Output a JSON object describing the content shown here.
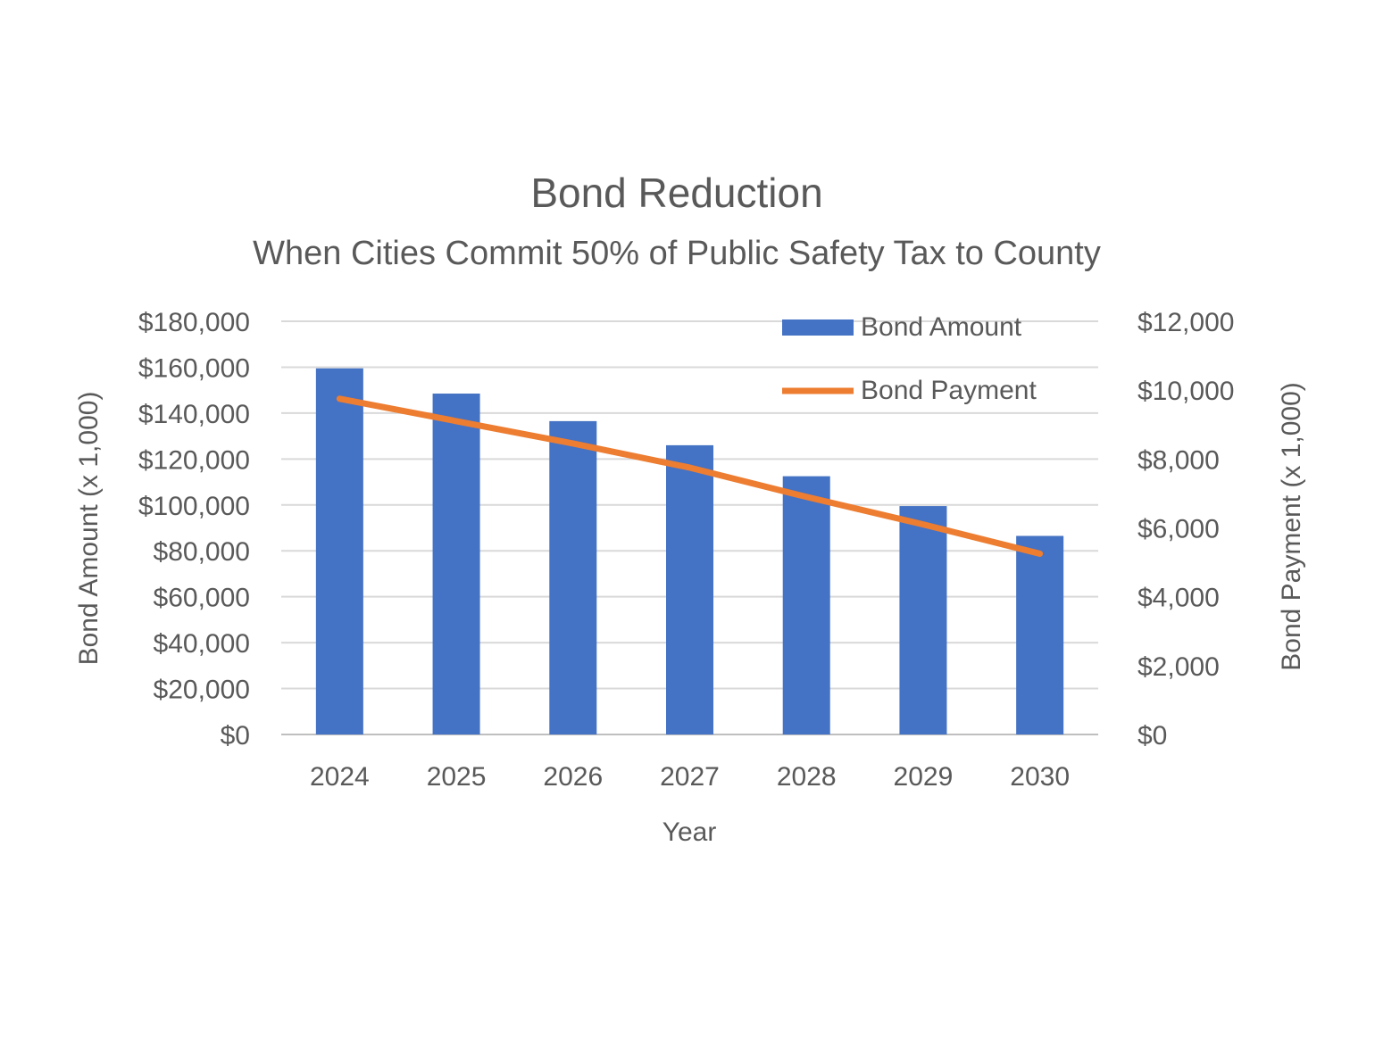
{
  "chart_data": {
    "type": "bar",
    "title": "Bond Reduction",
    "subtitle": "When Cities Commit 50% of Public Safety Tax to County",
    "xlabel": "Year",
    "ylabel": "Bond Amount (x 1,000)",
    "y2label": "Bond Payment (x 1,000)",
    "categories": [
      "2024",
      "2025",
      "2026",
      "2027",
      "2028",
      "2029",
      "2030"
    ],
    "ylim": [
      0,
      180000
    ],
    "y2lim": [
      0,
      12000
    ],
    "yticks": [
      "$0",
      "$20,000",
      "$40,000",
      "$60,000",
      "$80,000",
      "$100,000",
      "$120,000",
      "$140,000",
      "$160,000",
      "$180,000"
    ],
    "y2ticks": [
      "$0",
      "$2,000",
      "$4,000",
      "$6,000",
      "$8,000",
      "$10,000",
      "$12,000"
    ],
    "grid": true,
    "legend_position": "top-right",
    "series": [
      {
        "name": "Bond Amount",
        "type": "bar",
        "axis": "left",
        "color": "#4472C4",
        "values": [
          159500,
          148500,
          136500,
          126000,
          112500,
          99500,
          86500
        ]
      },
      {
        "name": "Bond Payment",
        "type": "line",
        "axis": "right",
        "color": "#ED7D31",
        "values": [
          9750,
          9100,
          8450,
          7750,
          6900,
          6100,
          5250
        ]
      }
    ]
  }
}
